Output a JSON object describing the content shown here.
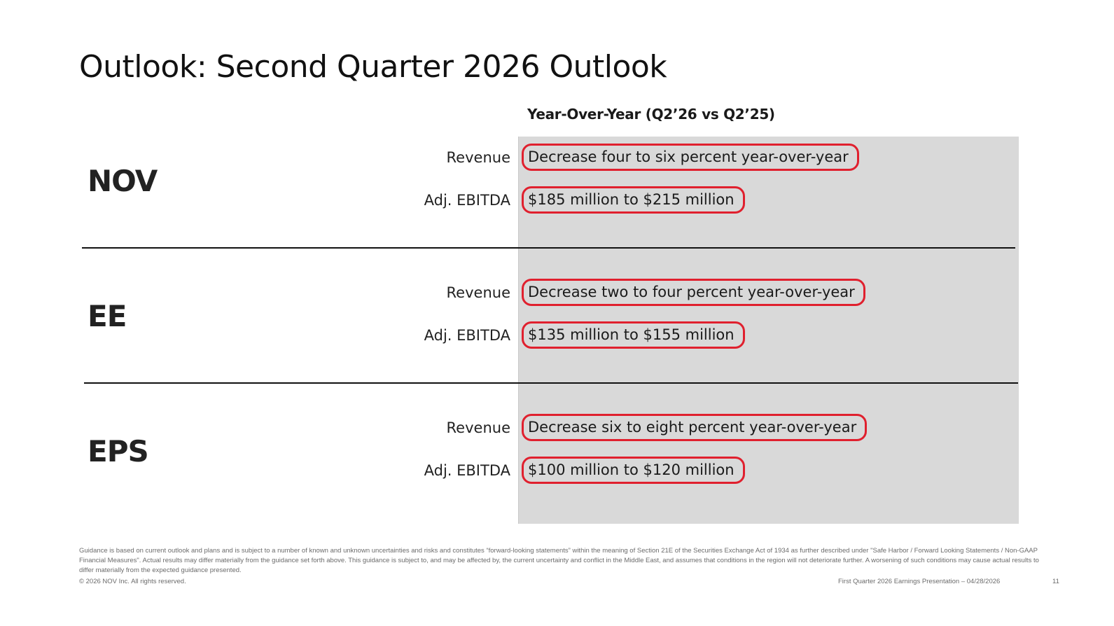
{
  "title": "Outlook: Second Quarter 2026 Outlook",
  "column_header": "Year-Over-Year (Q2’26 vs Q2’25)",
  "sections": [
    {
      "name": "NOV",
      "rows": [
        {
          "label": "Revenue",
          "value": "Decrease four to six percent year-over-year"
        },
        {
          "label": "Adj. EBITDA",
          "value": "$185 million to $215 million"
        }
      ]
    },
    {
      "name": "EE",
      "rows": [
        {
          "label": "Revenue",
          "value": "Decrease two to four percent year-over-year"
        },
        {
          "label": "Adj. EBITDA",
          "value": "$135 million to $155 million"
        }
      ]
    },
    {
      "name": "EPS",
      "rows": [
        {
          "label": "Revenue",
          "value": "Decrease six to eight percent year-over-year"
        },
        {
          "label": "Adj. EBITDA",
          "value": "$100 million to $120 million"
        }
      ]
    }
  ],
  "footnote": "Guidance is based on current outlook and plans and is subject to a number of known and unknown uncertainties and risks and constitutes “forward-looking statements” within the meaning of Section 21E of the Securities Exchange Act of 1934 as further described under \"Safe Harbor / Forward Looking Statements / Non-GAAP Financial Measures\". Actual results may differ materially from the guidance set forth above. This guidance is subject to, and may be affected by, the current uncertainty and conflict in the Middle East, and assumes that conditions in the region will not deteriorate further. A worsening of such conditions may cause actual results to differ materially from the expected guidance presented.",
  "copyright": "© 2026 NOV Inc. All rights reserved.",
  "presentation_name": "First Quarter 2026 Earnings Presentation – 04/28/2026",
  "page_number": "11",
  "colors": {
    "highlight_border": "#e0202e",
    "panel_background": "#d9d9d9"
  }
}
